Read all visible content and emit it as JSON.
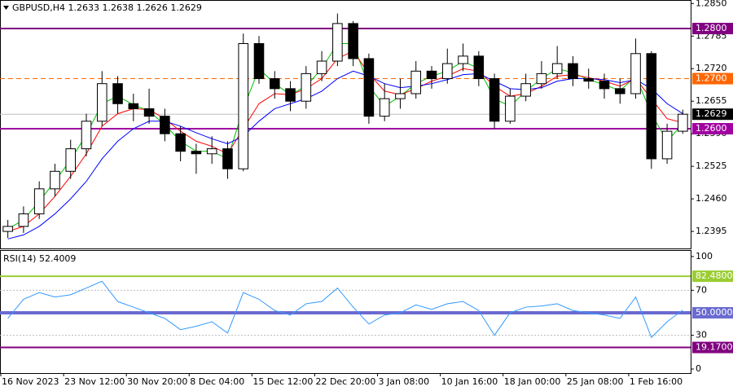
{
  "chart_data": [
    {
      "type": "candlestick",
      "title": "GBPUSD,H4  1.2633 1.2638 1.2626 1.2629",
      "categories": [
        "16 Nov 2023",
        null,
        null,
        null,
        "23 Nov 12:00",
        null,
        null,
        null,
        "30 Nov 20:00",
        null,
        null,
        null,
        "8 Dec 04:00",
        null,
        null,
        null,
        "15 Dec 12:00",
        null,
        null,
        null,
        "22 Dec 20:00",
        null,
        null,
        null,
        "3 Jan 08:00",
        null,
        null,
        null,
        "10 Jan 16:00",
        null,
        null,
        null,
        "18 Jan 00:00",
        null,
        null,
        null,
        "25 Jan 08:00",
        null,
        null,
        null,
        "1 Feb 16:00",
        null,
        null,
        null
      ],
      "open": [
        1.2395,
        1.2405,
        1.243,
        1.248,
        1.2515,
        1.256,
        1.2615,
        1.269,
        1.265,
        1.264,
        1.2625,
        1.259,
        1.2555,
        1.255,
        1.256,
        1.252,
        1.277,
        1.27,
        1.268,
        1.2655,
        1.271,
        1.2735,
        1.281,
        1.274,
        1.2625,
        1.266,
        1.267,
        1.2715,
        1.27,
        1.273,
        1.2745,
        1.27,
        1.2615,
        1.2665,
        1.269,
        1.271,
        1.273,
        1.27,
        1.2695,
        1.268,
        1.267,
        1.275,
        1.254,
        1.2595
      ],
      "high": [
        1.2418,
        1.2445,
        1.2495,
        1.253,
        1.2578,
        1.263,
        1.2715,
        1.2705,
        1.267,
        1.268,
        1.264,
        1.2605,
        1.257,
        1.2585,
        1.2575,
        1.279,
        1.2785,
        1.2715,
        1.2695,
        1.2725,
        1.2755,
        1.283,
        1.2815,
        1.275,
        1.269,
        1.27,
        1.2735,
        1.2725,
        1.276,
        1.277,
        1.2755,
        1.271,
        1.268,
        1.271,
        1.2735,
        1.2765,
        1.2745,
        1.272,
        1.271,
        1.27,
        1.278,
        1.2755,
        1.261,
        1.2638
      ],
      "low": [
        1.2382,
        1.2392,
        1.242,
        1.2465,
        1.25,
        1.2545,
        1.2605,
        1.263,
        1.2615,
        1.261,
        1.2575,
        1.2535,
        1.251,
        1.253,
        1.25,
        1.2515,
        1.269,
        1.266,
        1.2635,
        1.264,
        1.2695,
        1.2725,
        1.2725,
        1.261,
        1.2615,
        1.264,
        1.266,
        1.268,
        1.269,
        1.2715,
        1.2685,
        1.26,
        1.261,
        1.2655,
        1.268,
        1.27,
        1.2685,
        1.268,
        1.266,
        1.265,
        1.266,
        1.252,
        1.253,
        1.259
      ],
      "close": [
        1.2405,
        1.243,
        1.248,
        1.2515,
        1.256,
        1.2615,
        1.269,
        1.265,
        1.264,
        1.2625,
        1.259,
        1.2555,
        1.255,
        1.256,
        1.252,
        1.277,
        1.27,
        1.268,
        1.2655,
        1.271,
        1.2735,
        1.281,
        1.274,
        1.2625,
        1.266,
        1.267,
        1.2715,
        1.27,
        1.273,
        1.2745,
        1.27,
        1.2615,
        1.2665,
        1.269,
        1.271,
        1.273,
        1.27,
        1.2695,
        1.268,
        1.267,
        1.275,
        1.254,
        1.2595,
        1.2629
      ],
      "series": [
        {
          "color": "#00c000",
          "values": [
            1.24,
            1.2418,
            1.2455,
            1.2495,
            1.2538,
            1.2588,
            1.265,
            1.2665,
            1.2648,
            1.2635,
            1.2608,
            1.2575,
            1.2555,
            1.2555,
            1.254,
            1.264,
            1.272,
            1.269,
            1.2668,
            1.2685,
            1.272,
            1.277,
            1.277,
            1.2685,
            1.2645,
            1.2665,
            1.269,
            1.2705,
            1.2715,
            1.2735,
            1.272,
            1.266,
            1.2645,
            1.2675,
            1.27,
            1.272,
            1.2712,
            1.2698,
            1.2688,
            1.2676,
            1.2705,
            1.263,
            1.2575,
            1.261
          ]
        },
        {
          "color": "#ff0000",
          "values": [
            1.2395,
            1.2405,
            1.243,
            1.2465,
            1.2505,
            1.255,
            1.2605,
            1.263,
            1.264,
            1.2638,
            1.262,
            1.2595,
            1.2575,
            1.2565,
            1.255,
            1.26,
            1.265,
            1.267,
            1.2668,
            1.268,
            1.27,
            1.274,
            1.2755,
            1.271,
            1.2675,
            1.2668,
            1.268,
            1.2695,
            1.2705,
            1.272,
            1.2715,
            1.2685,
            1.2665,
            1.267,
            1.2685,
            1.2705,
            1.2708,
            1.2702,
            1.2695,
            1.2685,
            1.27,
            1.266,
            1.262,
            1.2612
          ]
        },
        {
          "color": "#0000ff",
          "values": [
            1.238,
            1.2388,
            1.2405,
            1.243,
            1.246,
            1.2495,
            1.254,
            1.2575,
            1.26,
            1.2615,
            1.2615,
            1.2605,
            1.2592,
            1.258,
            1.257,
            1.2585,
            1.2615,
            1.264,
            1.265,
            1.266,
            1.2675,
            1.27,
            1.2715,
            1.2705,
            1.269,
            1.2682,
            1.2685,
            1.269,
            1.2698,
            1.2708,
            1.271,
            1.2695,
            1.268,
            1.2678,
            1.2682,
            1.2695,
            1.27,
            1.27,
            1.2698,
            1.2692,
            1.2698,
            1.268,
            1.265,
            1.263
          ]
        }
      ],
      "ylim": [
        1.2361,
        1.2857
      ],
      "yticks": [
        {
          "value": 1.285,
          "label": "1.2850"
        },
        1.2785,
        {
          "value": 1.272,
          "label": "1.2720"
        },
        1.2655,
        {
          "value": 1.259,
          "label": "1.2590"
        },
        1.2525,
        {
          "value": 1.246,
          "label": "1.2460"
        },
        1.2395
      ],
      "levels": [
        {
          "value": 1.28,
          "label": "1.2800",
          "color": "#800080",
          "style": "solid"
        },
        {
          "value": 1.27,
          "label": "1.2700",
          "color": "#ff6600",
          "style": "dashed"
        },
        {
          "value": 1.26,
          "label": "1.2600",
          "color": "#a000a0",
          "style": "solid"
        }
      ],
      "current": 1.2629
    },
    {
      "type": "line",
      "title": "RSI(14) 52.4009",
      "color": "#3399ff",
      "values": [
        45,
        62,
        68,
        64,
        66,
        72,
        78,
        60,
        55,
        50,
        45,
        35,
        38,
        42,
        32,
        68,
        62,
        52,
        48,
        58,
        60,
        72,
        55,
        40,
        48,
        50,
        57,
        53,
        58,
        60,
        52,
        30,
        50,
        55,
        56,
        58,
        52,
        50,
        48,
        45,
        64,
        28,
        42,
        52.4
      ],
      "ylim": [
        -3.6,
        105
      ],
      "yticks": [
        100,
        70,
        30,
        0
      ],
      "grid_ticks": [
        70,
        30
      ],
      "levels": [
        {
          "value": 82.48,
          "label": "82.4800",
          "color": "#9acd32"
        },
        {
          "value": 50,
          "label": "50.0000",
          "color": "#6a6ad0"
        },
        {
          "value": 19.17,
          "label": "19.1700",
          "color": "#800080"
        }
      ]
    }
  ]
}
